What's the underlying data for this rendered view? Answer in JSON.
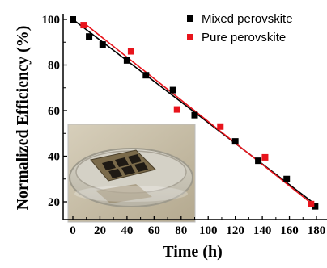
{
  "chart_data": {
    "type": "scatter",
    "xlabel": "Time (h)",
    "ylabel": "Normalized Efficiency (%)",
    "xlim": [
      -5,
      182
    ],
    "ylim": [
      12,
      105
    ],
    "x_ticks": [
      "0",
      "20",
      "40",
      "60",
      "80",
      "100",
      "120",
      "140",
      "160",
      "180"
    ],
    "y_ticks": [
      "20",
      "40",
      "60",
      "80",
      "100"
    ],
    "grid": false,
    "legend_position": "top-right",
    "series": [
      {
        "name": "Mixed perovskite",
        "marker": "square",
        "color": "#000000",
        "x": [
          0,
          12,
          22,
          40,
          54,
          74,
          90,
          120,
          137,
          158,
          179
        ],
        "y": [
          100,
          92.5,
          89,
          82,
          75.5,
          69,
          58,
          46.5,
          38,
          30,
          18
        ],
        "fit": {
          "x": [
            0,
            180
          ],
          "y": [
            100,
            18.5
          ],
          "color": "#000000"
        }
      },
      {
        "name": "Pure perovskite",
        "marker": "square",
        "color": "#e8141c",
        "x": [
          8,
          43,
          77,
          109,
          142,
          176
        ],
        "y": [
          97.5,
          86,
          60.5,
          53,
          39.5,
          19
        ],
        "fit": {
          "x": [
            8,
            178
          ],
          "y": [
            98.5,
            18.5
          ],
          "color": "#e8141c"
        }
      }
    ],
    "inset": {
      "content": "photo of perovskite device in glass dish",
      "border": "#cccccc"
    }
  }
}
